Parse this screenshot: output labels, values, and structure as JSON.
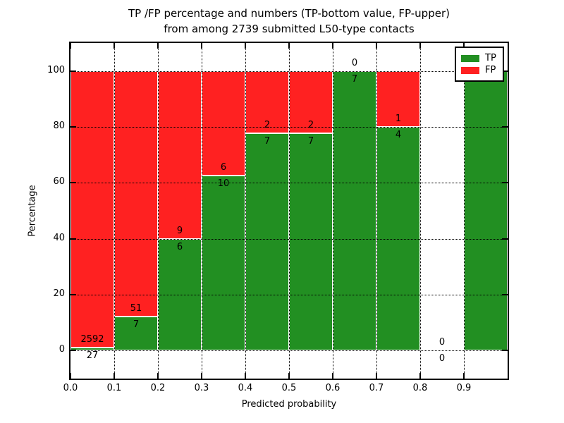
{
  "window": {
    "background": "#ffffff"
  },
  "chart_data": {
    "type": "bar",
    "stacked": true,
    "orientation": "vertical",
    "title": "TP /FP percentage and numbers (TP-bottom value, FP-upper)\nfrom among 2739 submitted L50-type contacts",
    "xlabel": "Predicted probability",
    "ylabel": "Percentage",
    "xlim": [
      0.0,
      1.0
    ],
    "ylim": [
      -10,
      110
    ],
    "x_tick_values": [
      0.0,
      0.1,
      0.2,
      0.3,
      0.4,
      0.5,
      0.6,
      0.7,
      0.8,
      0.9
    ],
    "x_tick_labels": [
      "0.0",
      "0.1",
      "0.2",
      "0.3",
      "0.4",
      "0.5",
      "0.6",
      "0.7",
      "0.8",
      "0.9"
    ],
    "y_tick_values": [
      0,
      20,
      40,
      60,
      80,
      100
    ],
    "y_tick_labels": [
      "0",
      "20",
      "40",
      "60",
      "80",
      "100"
    ],
    "grid": {
      "style": "dotted",
      "color": "#000000"
    },
    "bar_width": 0.1,
    "colors": {
      "tp": "#228f22",
      "fp": "#ff2121",
      "bar_edge": "#ffffff"
    },
    "legend": {
      "position": "upper right",
      "entries": [
        {
          "label": "TP",
          "color": "#228f22"
        },
        {
          "label": "FP",
          "color": "#ff2121"
        }
      ]
    },
    "total_contacts": 2739,
    "bins": [
      {
        "range": [
          0.0,
          0.1
        ],
        "tp": 27,
        "fp": 2592,
        "tp_pct": 1.03
      },
      {
        "range": [
          0.1,
          0.2
        ],
        "tp": 7,
        "fp": 51,
        "tp_pct": 12.07
      },
      {
        "range": [
          0.2,
          0.3
        ],
        "tp": 6,
        "fp": 9,
        "tp_pct": 40.0
      },
      {
        "range": [
          0.3,
          0.4
        ],
        "tp": 10,
        "fp": 6,
        "tp_pct": 62.5
      },
      {
        "range": [
          0.4,
          0.5
        ],
        "tp": 7,
        "fp": 2,
        "tp_pct": 77.78
      },
      {
        "range": [
          0.5,
          0.6
        ],
        "tp": 7,
        "fp": 2,
        "tp_pct": 77.78
      },
      {
        "range": [
          0.6,
          0.7
        ],
        "tp": 7,
        "fp": 0,
        "tp_pct": 100.0
      },
      {
        "range": [
          0.7,
          0.8
        ],
        "tp": 4,
        "fp": 1,
        "tp_pct": 80.0
      },
      {
        "range": [
          0.8,
          0.9
        ],
        "tp": 0,
        "fp": 0,
        "tp_pct": null
      },
      {
        "range": [
          0.9,
          1.0
        ],
        "tp": 1,
        "fp": 0,
        "tp_pct": 100.0
      }
    ]
  }
}
